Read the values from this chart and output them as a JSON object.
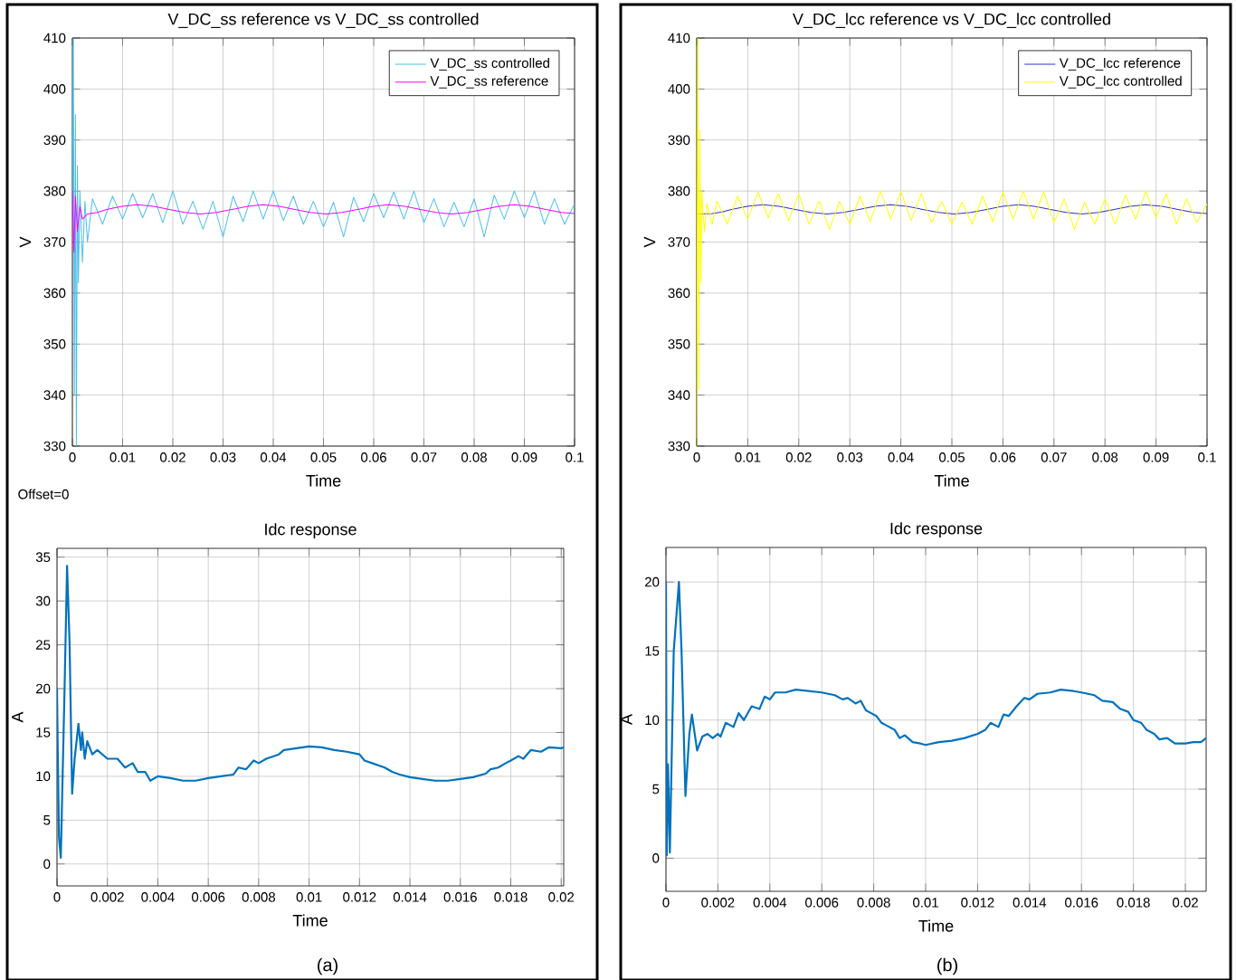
{
  "chart_data": [
    {
      "type": "line",
      "title": "V_DC_ss reference vs V_DC_ss controlled",
      "xlabel": "Time",
      "ylabel": "V",
      "xlim": [
        0,
        0.1
      ],
      "ylim": [
        330,
        410
      ],
      "xticks": [
        0,
        0.01,
        0.02,
        0.03,
        0.04,
        0.05,
        0.06,
        0.07,
        0.08,
        0.09,
        0.1
      ],
      "yticks": [
        330,
        340,
        350,
        360,
        370,
        380,
        390,
        400,
        410
      ],
      "grid": true,
      "legend": "top right",
      "annotations": [
        "Offset=0"
      ],
      "series": [
        {
          "name": "V_DC_ss controlled",
          "color": "#4dbeee",
          "x": [
            0,
            0.0002,
            0.0004,
            0.0006,
            0.0008,
            0.001,
            0.0012,
            0.0015,
            0.002,
            0.0025,
            0.003,
            0.004,
            0.006,
            0.008,
            0.01,
            0.012,
            0.014,
            0.016,
            0.018,
            0.02,
            0.022,
            0.024,
            0.026,
            0.028,
            0.03,
            0.032,
            0.034,
            0.036,
            0.038,
            0.04,
            0.042,
            0.044,
            0.046,
            0.048,
            0.05,
            0.052,
            0.054,
            0.056,
            0.058,
            0.06,
            0.062,
            0.064,
            0.066,
            0.068,
            0.07,
            0.072,
            0.074,
            0.076,
            0.078,
            0.08,
            0.082,
            0.084,
            0.086,
            0.088,
            0.09,
            0.092,
            0.094,
            0.096,
            0.098,
            0.1
          ],
          "values": [
            376,
            410,
            340,
            395,
            330,
            385,
            362,
            380,
            366,
            378,
            370,
            378.5,
            373.5,
            379,
            374.5,
            379.5,
            374.8,
            379.5,
            373.8,
            380,
            373.5,
            378,
            372.5,
            378,
            371,
            379,
            374,
            380,
            374.5,
            380,
            374.2,
            379,
            373.5,
            378,
            373,
            377.8,
            371,
            378.8,
            374,
            379.5,
            374.8,
            379.8,
            374.5,
            380,
            373.8,
            378.5,
            373,
            377.8,
            373,
            378.5,
            371,
            379.2,
            374.5,
            380,
            374.8,
            380,
            373.5,
            378.5,
            373.5,
            377.5
          ]
        },
        {
          "name": "V_DC_ss reference",
          "color": "#ff00ff",
          "x": [
            0,
            0.0003,
            0.0006,
            0.001,
            0.0015,
            0.002,
            0.003,
            0.005,
            0.0068,
            0.0099,
            0.013,
            0.0162,
            0.0193,
            0.0224,
            0.0255,
            0.0287,
            0.0318,
            0.0349,
            0.038,
            0.0412,
            0.0443,
            0.0474,
            0.0505,
            0.0537,
            0.0568,
            0.0599,
            0.063,
            0.0662,
            0.0693,
            0.0724,
            0.0755,
            0.0787,
            0.0818,
            0.0849,
            0.088,
            0.0912,
            0.0943,
            0.0974,
            0.1
          ],
          "values": [
            380,
            368,
            379,
            372,
            377,
            374.5,
            375.5,
            375.8,
            376.4,
            377,
            377.3,
            377,
            376.4,
            375.8,
            375.5,
            375.8,
            376.4,
            377,
            377.3,
            377,
            376.4,
            375.8,
            375.5,
            375.8,
            376.4,
            377,
            377.3,
            377,
            376.4,
            375.8,
            375.5,
            375.8,
            376.4,
            377,
            377.3,
            377,
            376.4,
            375.8,
            375.6
          ]
        }
      ]
    },
    {
      "type": "line",
      "title": "V_DC_lcc reference vs V_DC_lcc controlled",
      "xlabel": "Time",
      "ylabel": "V",
      "xlim": [
        0,
        0.1
      ],
      "ylim": [
        330,
        410
      ],
      "xticks": [
        0,
        0.01,
        0.02,
        0.03,
        0.04,
        0.05,
        0.06,
        0.07,
        0.08,
        0.09,
        0.1
      ],
      "yticks": [
        330,
        340,
        350,
        360,
        370,
        380,
        390,
        400,
        410
      ],
      "grid": true,
      "legend": "top right",
      "series": [
        {
          "name": "V_DC_lcc reference",
          "color": "#3333cc",
          "x": [
            0,
            0.003,
            0.005,
            0.0068,
            0.0099,
            0.013,
            0.0162,
            0.0193,
            0.0224,
            0.0255,
            0.0287,
            0.0318,
            0.0349,
            0.038,
            0.0412,
            0.0443,
            0.0474,
            0.0505,
            0.0537,
            0.0568,
            0.0599,
            0.063,
            0.0662,
            0.0693,
            0.0724,
            0.0755,
            0.0787,
            0.0818,
            0.0849,
            0.088,
            0.0912,
            0.0943,
            0.0974,
            0.1
          ],
          "values": [
            375.5,
            375.6,
            375.9,
            376.4,
            377,
            377.3,
            377,
            376.4,
            375.8,
            375.5,
            375.8,
            376.4,
            377,
            377.3,
            377,
            376.4,
            375.8,
            375.5,
            375.8,
            376.4,
            377,
            377.3,
            377,
            376.4,
            375.8,
            375.5,
            375.8,
            376.4,
            377,
            377.3,
            377,
            376.4,
            375.8,
            375.6
          ]
        },
        {
          "name": "V_DC_lcc controlled",
          "color": "#ffff00",
          "x": [
            0,
            0.0002,
            0.0004,
            0.0006,
            0.0008,
            0.001,
            0.0015,
            0.002,
            0.003,
            0.004,
            0.006,
            0.008,
            0.01,
            0.012,
            0.014,
            0.016,
            0.018,
            0.02,
            0.022,
            0.024,
            0.026,
            0.028,
            0.03,
            0.032,
            0.034,
            0.036,
            0.038,
            0.04,
            0.042,
            0.044,
            0.046,
            0.048,
            0.05,
            0.052,
            0.054,
            0.056,
            0.058,
            0.06,
            0.062,
            0.064,
            0.066,
            0.068,
            0.07,
            0.072,
            0.074,
            0.076,
            0.078,
            0.08,
            0.082,
            0.084,
            0.086,
            0.088,
            0.09,
            0.092,
            0.094,
            0.096,
            0.098,
            0.1
          ],
          "values": [
            330,
            410,
            341,
            392,
            362,
            380,
            372,
            377.5,
            373.5,
            378,
            373.5,
            379,
            374.5,
            379.8,
            374.8,
            379.5,
            374.2,
            379.5,
            373.5,
            378,
            372.5,
            378,
            373.5,
            379,
            374,
            380,
            374.5,
            380,
            374.2,
            379.5,
            373.8,
            378,
            373.5,
            377.8,
            373.5,
            379,
            374,
            379.8,
            374.5,
            380,
            374.5,
            379.8,
            373.8,
            378.5,
            372.5,
            377.8,
            373.5,
            378.5,
            373.5,
            379.2,
            374.5,
            380,
            374.8,
            379.5,
            373.5,
            378.5,
            373.8,
            377.5
          ]
        }
      ]
    },
    {
      "type": "line",
      "title": "Idc response",
      "xlabel": "Time",
      "ylabel": "A",
      "xlim": [
        0,
        0.0201
      ],
      "ylim": [
        -2.5,
        36
      ],
      "xticks": [
        0,
        0.002,
        0.004,
        0.006,
        0.008,
        0.01,
        0.012,
        0.014,
        0.016,
        0.018,
        0.02
      ],
      "yticks": [
        0,
        5,
        10,
        15,
        20,
        25,
        30,
        35
      ],
      "grid": true,
      "annotations": [
        "(a)"
      ],
      "series": [
        {
          "color": "#0072bd",
          "x": [
            0,
            3e-05,
            8e-05,
            0.00015,
            0.0003,
            0.0004,
            0.0005,
            0.0006,
            0.0007,
            0.00085,
            0.00095,
            0.001,
            0.0011,
            0.0012,
            0.0014,
            0.0016,
            0.002,
            0.0024,
            0.0027,
            0.003,
            0.0032,
            0.0035,
            0.0037,
            0.004,
            0.0045,
            0.005,
            0.0055,
            0.006,
            0.0065,
            0.007,
            0.0072,
            0.0075,
            0.0078,
            0.008,
            0.0083,
            0.0088,
            0.009,
            0.0095,
            0.01,
            0.0105,
            0.011,
            0.0115,
            0.012,
            0.0122,
            0.0125,
            0.013,
            0.0133,
            0.0136,
            0.014,
            0.0145,
            0.015,
            0.0155,
            0.016,
            0.0165,
            0.017,
            0.0172,
            0.0175,
            0.0178,
            0.018,
            0.0183,
            0.0185,
            0.0188,
            0.0192,
            0.0195,
            0.02,
            0.0201
          ],
          "values": [
            20,
            13,
            3,
            0.7,
            20,
            34,
            25,
            8,
            12,
            16,
            13,
            15,
            12,
            14,
            12.5,
            13,
            12,
            12,
            11,
            11.5,
            10.5,
            10.5,
            9.5,
            10,
            9.8,
            9.5,
            9.5,
            9.8,
            10,
            10.2,
            11,
            10.8,
            11.8,
            11.5,
            12,
            12.5,
            13,
            13.2,
            13.4,
            13.3,
            13,
            12.8,
            12.5,
            11.8,
            11.5,
            11,
            10.5,
            10.2,
            9.9,
            9.7,
            9.5,
            9.5,
            9.7,
            9.9,
            10.3,
            10.8,
            11,
            11.5,
            11.8,
            12.3,
            12,
            13,
            12.8,
            13.3,
            13.2,
            13.3
          ]
        }
      ]
    },
    {
      "type": "line",
      "title": "Idc response",
      "xlabel": "Time",
      "ylabel": "A",
      "xlim": [
        0,
        0.0208
      ],
      "ylim": [
        -2.4,
        22.5
      ],
      "xticks": [
        0,
        0.002,
        0.004,
        0.006,
        0.008,
        0.01,
        0.012,
        0.014,
        0.016,
        0.018,
        0.02
      ],
      "yticks": [
        0,
        5,
        10,
        15,
        20
      ],
      "grid": true,
      "annotations": [
        "(b)"
      ],
      "series": [
        {
          "color": "#0072bd",
          "x": [
            0,
            3e-05,
            8e-05,
            0.00015,
            0.0003,
            0.0005,
            0.0006,
            0.00075,
            0.0009,
            0.001,
            0.0012,
            0.0014,
            0.0016,
            0.0018,
            0.002,
            0.0021,
            0.0023,
            0.0026,
            0.0028,
            0.003,
            0.0033,
            0.0036,
            0.0038,
            0.004,
            0.0042,
            0.0046,
            0.005,
            0.0055,
            0.006,
            0.0065,
            0.0068,
            0.007,
            0.0073,
            0.0075,
            0.0077,
            0.0079,
            0.0081,
            0.0083,
            0.0085,
            0.0088,
            0.009,
            0.0092,
            0.0095,
            0.0098,
            0.01,
            0.0105,
            0.011,
            0.0115,
            0.012,
            0.0123,
            0.0125,
            0.0128,
            0.013,
            0.0132,
            0.0135,
            0.0138,
            0.014,
            0.0143,
            0.0148,
            0.0152,
            0.0157,
            0.016,
            0.0165,
            0.0168,
            0.0172,
            0.0175,
            0.0178,
            0.018,
            0.0183,
            0.0185,
            0.0188,
            0.019,
            0.0193,
            0.0196,
            0.02,
            0.0203,
            0.0206,
            0.0208
          ],
          "values": [
            20,
            0.2,
            6.8,
            0.4,
            15,
            20,
            15,
            4.5,
            9,
            10.4,
            7.8,
            8.8,
            9,
            8.7,
            9,
            8.8,
            9.8,
            9.5,
            10.5,
            10,
            11,
            10.8,
            11.7,
            11.5,
            12,
            12,
            12.2,
            12.1,
            12,
            11.8,
            11.5,
            11.6,
            11.2,
            11.4,
            10.7,
            10.5,
            10.3,
            9.8,
            9.6,
            9.3,
            8.7,
            8.9,
            8.4,
            8.3,
            8.2,
            8.4,
            8.5,
            8.7,
            9,
            9.3,
            9.8,
            9.5,
            10.4,
            10.3,
            11,
            11.6,
            11.5,
            11.9,
            12,
            12.2,
            12.1,
            12,
            11.8,
            11.4,
            11.3,
            10.8,
            10.6,
            10,
            9.8,
            9.3,
            9,
            8.6,
            8.7,
            8.3,
            8.3,
            8.4,
            8.4,
            8.7
          ]
        }
      ]
    }
  ]
}
